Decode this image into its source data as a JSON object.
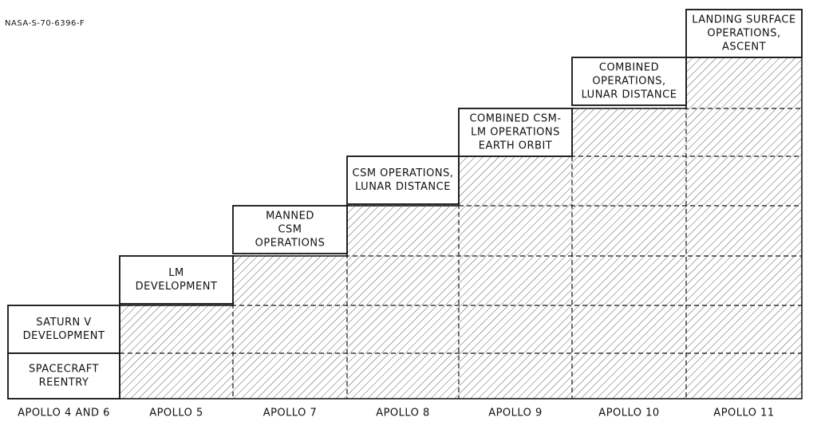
{
  "header": {
    "code": "NASA-S-70-6396-F"
  },
  "columns": [
    {
      "label": "APOLLO 4 AND 6",
      "boxes": [
        [
          "SATURN V",
          "DEVELOPMENT"
        ],
        [
          "SPACECRAFT",
          "REENTRY"
        ]
      ]
    },
    {
      "label": "APOLLO 5",
      "boxes": [
        [
          "LM",
          "DEVELOPMENT"
        ]
      ]
    },
    {
      "label": "APOLLO 7",
      "boxes": [
        [
          "MANNED",
          "CSM",
          "OPERATIONS"
        ]
      ]
    },
    {
      "label": "APOLLO 8",
      "boxes": [
        [
          "CSM OPERATIONS,",
          "LUNAR DISTANCE"
        ]
      ]
    },
    {
      "label": "APOLLO 9",
      "boxes": [
        [
          "COMBINED CSM-",
          "LM OPERATIONS",
          "EARTH ORBIT"
        ]
      ]
    },
    {
      "label": "APOLLO 10",
      "boxes": [
        [
          "COMBINED",
          "OPERATIONS,",
          "LUNAR DISTANCE"
        ]
      ]
    },
    {
      "label": "APOLLO 11",
      "boxes": [
        [
          "LANDING SURFACE",
          "OPERATIONS,",
          "ASCENT"
        ]
      ]
    }
  ]
}
